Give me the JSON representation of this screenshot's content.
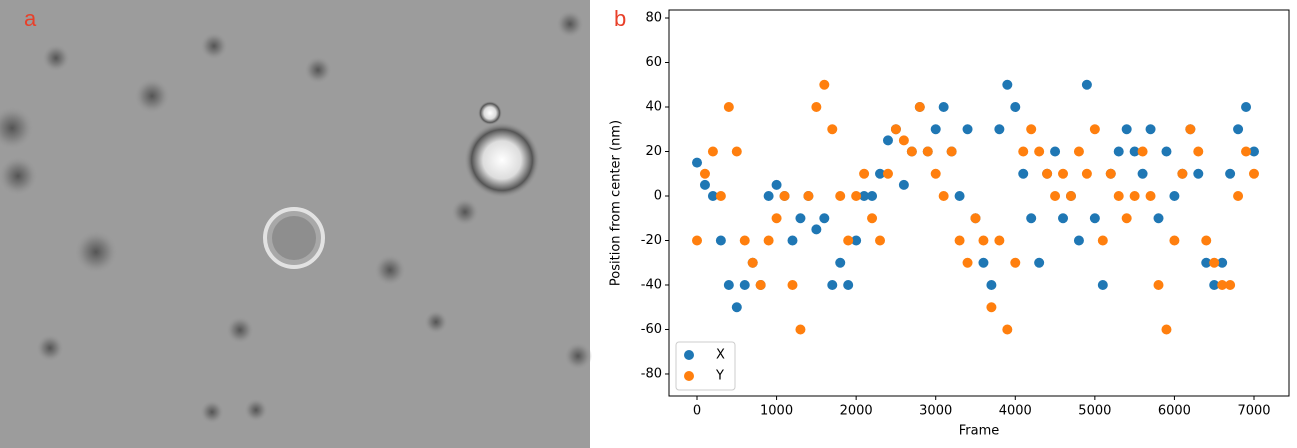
{
  "panel_labels": [
    "a",
    "b"
  ],
  "chart_data": {
    "type": "scatter",
    "x_label": "Frame",
    "y_label": "Position from center (nm)",
    "x": [
      0,
      100,
      200,
      300,
      400,
      500,
      600,
      700,
      800,
      900,
      1000,
      1100,
      1200,
      1300,
      1400,
      1500,
      1600,
      1700,
      1800,
      1900,
      2000,
      2100,
      2200,
      2300,
      2400,
      2500,
      2600,
      2700,
      2800,
      2900,
      3000,
      3100,
      3200,
      3300,
      3400,
      3500,
      3600,
      3700,
      3800,
      3900,
      4000,
      4100,
      4200,
      4300,
      4400,
      4500,
      4600,
      4700,
      4800,
      4900,
      5000,
      5100,
      5200,
      5300,
      5400,
      5500,
      5600,
      5700,
      5800,
      5900,
      6000,
      6100,
      6200,
      6300,
      6400,
      6500,
      6600,
      6700,
      6800,
      6900,
      7000
    ],
    "series": [
      {
        "name": "X",
        "color": "#1f77b4",
        "values": [
          15,
          5,
          0,
          -20,
          -40,
          -50,
          -40,
          -30,
          -40,
          0,
          5,
          0,
          -20,
          -10,
          0,
          -15,
          -10,
          -40,
          -30,
          -40,
          -20,
          0,
          0,
          10,
          25,
          30,
          5,
          20,
          40,
          20,
          30,
          40,
          20,
          0,
          30,
          -10,
          -30,
          -40,
          30,
          50,
          40,
          10,
          -10,
          -30,
          10,
          20,
          -10,
          0,
          -20,
          50,
          -10,
          -40,
          10,
          20,
          30,
          20,
          10,
          30,
          -10,
          20,
          0,
          10,
          30,
          10,
          -30,
          -40,
          -30,
          10,
          30,
          40,
          20
        ]
      },
      {
        "name": "Y",
        "color": "#ff7f0e",
        "values": [
          -20,
          10,
          20,
          0,
          40,
          20,
          -20,
          -30,
          -40,
          -20,
          -10,
          0,
          -40,
          -60,
          0,
          40,
          50,
          30,
          0,
          -20,
          0,
          10,
          -10,
          -20,
          10,
          30,
          25,
          20,
          40,
          20,
          10,
          0,
          20,
          -20,
          -30,
          -10,
          -20,
          -50,
          -20,
          -60,
          -30,
          20,
          30,
          20,
          10,
          0,
          10,
          0,
          20,
          10,
          30,
          -20,
          10,
          0,
          -10,
          0,
          20,
          0,
          -40,
          -60,
          -20,
          10,
          30,
          20,
          -20,
          -30,
          -40,
          -40,
          0,
          20,
          10
        ]
      }
    ],
    "xlim": [
      -352,
      7440
    ],
    "ylim": [
      -89.9,
      83.6
    ],
    "xticks": [
      0,
      1000,
      2000,
      3000,
      4000,
      5000,
      6000,
      7000
    ],
    "yticks": [
      -80,
      -60,
      -40,
      -20,
      0,
      20,
      40,
      60,
      80
    ],
    "legend": "lower left"
  }
}
